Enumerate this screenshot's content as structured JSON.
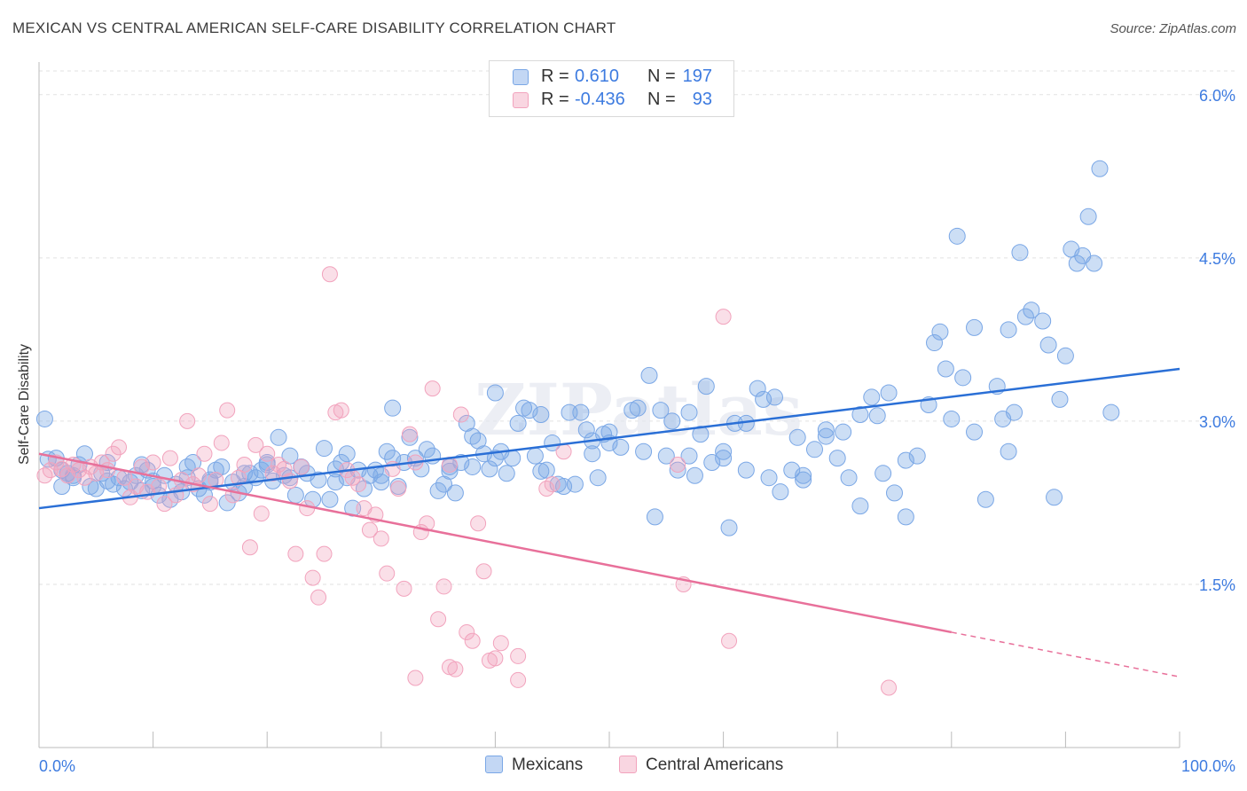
{
  "title": "MEXICAN VS CENTRAL AMERICAN SELF-CARE DISABILITY CORRELATION CHART",
  "source": "Source: ZipAtlas.com",
  "watermark": "ZIPatlas",
  "legend_top": {
    "rows": [
      {
        "r_label": "R =",
        "r_value": "0.610",
        "n_label": "N =",
        "n_value": "197",
        "color": "#7aa7e6"
      },
      {
        "r_label": "R =",
        "r_value": "-0.436",
        "n_label": "N =",
        "n_value": "93",
        "color": "#f2a3bd"
      }
    ]
  },
  "legend_bottom": [
    {
      "label": "Mexicans",
      "color": "#7aa7e6"
    },
    {
      "label": "Central Americans",
      "color": "#f2a3bd"
    }
  ],
  "colors": {
    "blue_fill": "rgba(122,167,230,0.38)",
    "blue_stroke": "#7aa7e6",
    "blue_line": "#2a6fd6",
    "pink_fill": "rgba(242,163,189,0.35)",
    "pink_stroke": "#f2a3bd",
    "pink_line": "#e8709a",
    "tick_text": "#3d7be0",
    "grid": "#e2e2e2"
  },
  "chart_data": {
    "type": "scatter",
    "title": "MEXICAN VS CENTRAL AMERICAN SELF-CARE DISABILITY CORRELATION CHART",
    "xlabel": "",
    "ylabel": "Self-Care Disability",
    "xlim": [
      0,
      100
    ],
    "ylim": [
      0,
      6.3
    ],
    "x_tick_labels": [
      {
        "value": 0,
        "label": "0.0%"
      },
      {
        "value": 100,
        "label": "100.0%"
      }
    ],
    "y_ticks": [
      {
        "value": 1.5,
        "label": "1.5%"
      },
      {
        "value": 3.0,
        "label": "3.0%"
      },
      {
        "value": 4.5,
        "label": "4.5%"
      },
      {
        "value": 6.0,
        "label": "6.0%"
      }
    ],
    "grid": true,
    "legend_position": "bottom",
    "series": [
      {
        "name": "Mexicans",
        "trend": {
          "x": [
            0,
            100
          ],
          "y": [
            2.2,
            3.48
          ],
          "dashed_from": null
        },
        "points": [
          [
            0.5,
            3.02
          ],
          [
            0.8,
            2.65
          ],
          [
            1.5,
            2.66
          ],
          [
            2.0,
            2.55
          ],
          [
            2.5,
            2.52
          ],
          [
            3.0,
            2.48
          ],
          [
            3.5,
            2.6
          ],
          [
            4,
            2.7
          ],
          [
            4.5,
            2.4
          ],
          [
            5,
            2.38
          ],
          [
            5.5,
            2.52
          ],
          [
            6,
            2.45
          ],
          [
            6.5,
            2.42
          ],
          [
            7,
            2.48
          ],
          [
            7.5,
            2.38
          ],
          [
            8,
            2.44
          ],
          [
            8.5,
            2.5
          ],
          [
            9,
            2.36
          ],
          [
            9.5,
            2.55
          ],
          [
            10,
            2.4
          ],
          [
            10.5,
            2.32
          ],
          [
            11,
            2.5
          ],
          [
            11.5,
            2.28
          ],
          [
            12,
            2.42
          ],
          [
            12.5,
            2.35
          ],
          [
            13,
            2.48
          ],
          [
            13.5,
            2.62
          ],
          [
            14,
            2.38
          ],
          [
            14.5,
            2.32
          ],
          [
            15,
            2.46
          ],
          [
            15.5,
            2.55
          ],
          [
            16,
            2.58
          ],
          [
            16.5,
            2.25
          ],
          [
            17,
            2.44
          ],
          [
            17.5,
            2.34
          ],
          [
            18,
            2.4
          ],
          [
            18.5,
            2.52
          ],
          [
            19,
            2.48
          ],
          [
            19.5,
            2.55
          ],
          [
            20,
            2.6
          ],
          [
            20.5,
            2.45
          ],
          [
            21,
            2.85
          ],
          [
            21.5,
            2.5
          ],
          [
            22,
            2.48
          ],
          [
            22.5,
            2.32
          ],
          [
            23,
            2.58
          ],
          [
            23.5,
            2.52
          ],
          [
            24,
            2.28
          ],
          [
            24.5,
            2.46
          ],
          [
            25,
            2.75
          ],
          [
            25.5,
            2.28
          ],
          [
            26,
            2.44
          ],
          [
            26.5,
            2.62
          ],
          [
            27,
            2.48
          ],
          [
            27.5,
            2.2
          ],
          [
            28,
            2.55
          ],
          [
            28.5,
            2.38
          ],
          [
            29,
            2.5
          ],
          [
            29.5,
            2.55
          ],
          [
            30,
            2.44
          ],
          [
            30.5,
            2.72
          ],
          [
            31,
            2.66
          ],
          [
            31.5,
            2.4
          ],
          [
            32,
            2.62
          ],
          [
            32.5,
            2.85
          ],
          [
            33,
            2.66
          ],
          [
            33.5,
            2.56
          ],
          [
            34,
            2.74
          ],
          [
            34.5,
            2.68
          ],
          [
            35,
            2.36
          ],
          [
            35.5,
            2.42
          ],
          [
            36,
            2.54
          ],
          [
            36.5,
            2.34
          ],
          [
            37,
            2.62
          ],
          [
            37.5,
            2.98
          ],
          [
            38,
            2.58
          ],
          [
            38.5,
            2.82
          ],
          [
            39,
            2.7
          ],
          [
            39.5,
            2.56
          ],
          [
            40,
            3.26
          ],
          [
            40.5,
            2.72
          ],
          [
            41,
            2.52
          ],
          [
            41.5,
            2.66
          ],
          [
            42,
            2.98
          ],
          [
            42.5,
            3.12
          ],
          [
            43,
            3.1
          ],
          [
            43.5,
            2.68
          ],
          [
            44,
            2.54
          ],
          [
            44.5,
            2.55
          ],
          [
            45,
            2.8
          ],
          [
            45.5,
            2.42
          ],
          [
            46,
            2.4
          ],
          [
            46.5,
            3.08
          ],
          [
            47,
            2.42
          ],
          [
            47.5,
            3.08
          ],
          [
            48,
            2.92
          ],
          [
            48.5,
            2.7
          ],
          [
            49,
            2.48
          ],
          [
            49.5,
            2.88
          ],
          [
            50,
            2.8
          ],
          [
            51,
            2.76
          ],
          [
            52,
            3.1
          ],
          [
            53,
            2.72
          ],
          [
            53.5,
            3.42
          ],
          [
            54,
            2.12
          ],
          [
            54.5,
            3.1
          ],
          [
            55,
            2.68
          ],
          [
            56,
            2.55
          ],
          [
            57,
            2.68
          ],
          [
            57.5,
            2.5
          ],
          [
            58,
            2.88
          ],
          [
            58.5,
            3.32
          ],
          [
            59,
            2.62
          ],
          [
            60,
            2.72
          ],
          [
            60.5,
            2.02
          ],
          [
            61,
            2.98
          ],
          [
            62,
            2.55
          ],
          [
            63,
            3.3
          ],
          [
            64,
            2.48
          ],
          [
            64.5,
            3.22
          ],
          [
            65,
            2.35
          ],
          [
            66,
            2.55
          ],
          [
            66.5,
            2.85
          ],
          [
            67,
            2.46
          ],
          [
            68,
            2.74
          ],
          [
            69,
            2.86
          ],
          [
            70,
            2.66
          ],
          [
            70.5,
            2.9
          ],
          [
            71,
            2.48
          ],
          [
            72,
            2.22
          ],
          [
            73,
            3.22
          ],
          [
            73.5,
            3.05
          ],
          [
            74,
            2.52
          ],
          [
            74.5,
            3.26
          ],
          [
            75,
            2.34
          ],
          [
            76,
            2.12
          ],
          [
            77,
            2.68
          ],
          [
            78,
            3.15
          ],
          [
            78.5,
            3.72
          ],
          [
            79,
            3.82
          ],
          [
            79.5,
            3.48
          ],
          [
            80,
            3.02
          ],
          [
            81,
            3.4
          ],
          [
            82,
            3.86
          ],
          [
            83,
            2.28
          ],
          [
            84,
            3.32
          ],
          [
            84.5,
            3.02
          ],
          [
            85,
            3.84
          ],
          [
            85.5,
            3.08
          ],
          [
            86,
            4.55
          ],
          [
            86.5,
            3.96
          ],
          [
            87,
            4.02
          ],
          [
            88,
            3.92
          ],
          [
            88.5,
            3.7
          ],
          [
            89,
            2.3
          ],
          [
            89.5,
            3.2
          ],
          [
            90,
            3.6
          ],
          [
            90.5,
            4.58
          ],
          [
            91,
            4.45
          ],
          [
            91.5,
            4.52
          ],
          [
            92,
            4.88
          ],
          [
            92.5,
            4.45
          ],
          [
            93,
            5.32
          ],
          [
            94,
            3.08
          ],
          [
            72,
            3.06
          ],
          [
            69,
            2.92
          ],
          [
            62,
            2.98
          ],
          [
            55.5,
            3.0
          ],
          [
            48.5,
            2.82
          ],
          [
            40,
            2.66
          ],
          [
            36,
            2.58
          ],
          [
            30,
            2.5
          ],
          [
            26,
            2.56
          ],
          [
            20,
            2.62
          ],
          [
            15,
            2.44
          ],
          [
            10,
            2.45
          ],
          [
            80.5,
            4.7
          ],
          [
            63.5,
            3.2
          ],
          [
            60,
            2.66
          ],
          [
            52.5,
            3.12
          ],
          [
            44,
            3.06
          ],
          [
            38,
            2.86
          ],
          [
            31,
            3.12
          ],
          [
            27,
            2.7
          ],
          [
            22,
            2.68
          ],
          [
            18,
            2.52
          ],
          [
            13,
            2.58
          ],
          [
            9,
            2.6
          ],
          [
            6,
            2.62
          ],
          [
            3,
            2.5
          ],
          [
            2,
            2.4
          ],
          [
            85,
            2.72
          ],
          [
            82,
            2.9
          ],
          [
            76,
            2.64
          ],
          [
            67,
            2.5
          ],
          [
            57,
            3.08
          ],
          [
            50,
            2.9
          ]
        ]
      },
      {
        "name": "Central Americans",
        "trend": {
          "x": [
            0,
            100
          ],
          "y": [
            2.7,
            0.65
          ],
          "dashed_from": 80
        },
        "points": [
          [
            0.5,
            2.5
          ],
          [
            1,
            2.55
          ],
          [
            1.5,
            2.62
          ],
          [
            2,
            2.56
          ],
          [
            2.5,
            2.5
          ],
          [
            3,
            2.6
          ],
          [
            3.5,
            2.55
          ],
          [
            4,
            2.48
          ],
          [
            4.5,
            2.58
          ],
          [
            5,
            2.52
          ],
          [
            5.5,
            2.62
          ],
          [
            6,
            2.55
          ],
          [
            6.5,
            2.7
          ],
          [
            7,
            2.76
          ],
          [
            7.5,
            2.48
          ],
          [
            8,
            2.3
          ],
          [
            8.5,
            2.4
          ],
          [
            9,
            2.58
          ],
          [
            9.5,
            2.35
          ],
          [
            10,
            2.62
          ],
          [
            10.5,
            2.4
          ],
          [
            11,
            2.24
          ],
          [
            11.5,
            2.66
          ],
          [
            12,
            2.32
          ],
          [
            12.5,
            2.46
          ],
          [
            13,
            3.0
          ],
          [
            13.5,
            2.42
          ],
          [
            14,
            2.5
          ],
          [
            14.5,
            2.7
          ],
          [
            15,
            2.24
          ],
          [
            15.5,
            2.46
          ],
          [
            16,
            2.8
          ],
          [
            16.5,
            3.1
          ],
          [
            17,
            2.32
          ],
          [
            17.5,
            2.48
          ],
          [
            18,
            2.6
          ],
          [
            18.5,
            1.84
          ],
          [
            19,
            2.78
          ],
          [
            19.5,
            2.15
          ],
          [
            20,
            2.7
          ],
          [
            20.5,
            2.52
          ],
          [
            21,
            2.6
          ],
          [
            21.5,
            2.56
          ],
          [
            22,
            2.45
          ],
          [
            22.5,
            1.78
          ],
          [
            23,
            2.58
          ],
          [
            23.5,
            2.2
          ],
          [
            24,
            1.56
          ],
          [
            24.5,
            1.38
          ],
          [
            25,
            1.78
          ],
          [
            25.5,
            4.35
          ],
          [
            26,
            3.08
          ],
          [
            26.5,
            3.1
          ],
          [
            27,
            2.55
          ],
          [
            27.5,
            2.48
          ],
          [
            28,
            2.42
          ],
          [
            28.5,
            2.2
          ],
          [
            29,
            2.0
          ],
          [
            29.5,
            2.14
          ],
          [
            30,
            1.92
          ],
          [
            30.5,
            1.6
          ],
          [
            31,
            2.56
          ],
          [
            31.5,
            2.38
          ],
          [
            32,
            1.46
          ],
          [
            32.5,
            2.88
          ],
          [
            33,
            2.62
          ],
          [
            33.5,
            1.98
          ],
          [
            34,
            2.06
          ],
          [
            34.5,
            3.3
          ],
          [
            35,
            1.18
          ],
          [
            35.5,
            1.48
          ],
          [
            36,
            2.6
          ],
          [
            36.5,
            0.72
          ],
          [
            37,
            3.06
          ],
          [
            37.5,
            1.06
          ],
          [
            38,
            0.98
          ],
          [
            38.5,
            2.06
          ],
          [
            39,
            1.62
          ],
          [
            39.5,
            0.8
          ],
          [
            40,
            0.82
          ],
          [
            40.5,
            0.96
          ],
          [
            42,
            0.84
          ],
          [
            44.5,
            2.38
          ],
          [
            45,
            2.42
          ],
          [
            46,
            2.72
          ],
          [
            56,
            2.6
          ],
          [
            56.5,
            1.5
          ],
          [
            60,
            3.96
          ],
          [
            60.5,
            0.98
          ],
          [
            74.5,
            0.55
          ],
          [
            33,
            0.64
          ],
          [
            36,
            0.74
          ],
          [
            42,
            0.62
          ]
        ]
      }
    ]
  }
}
